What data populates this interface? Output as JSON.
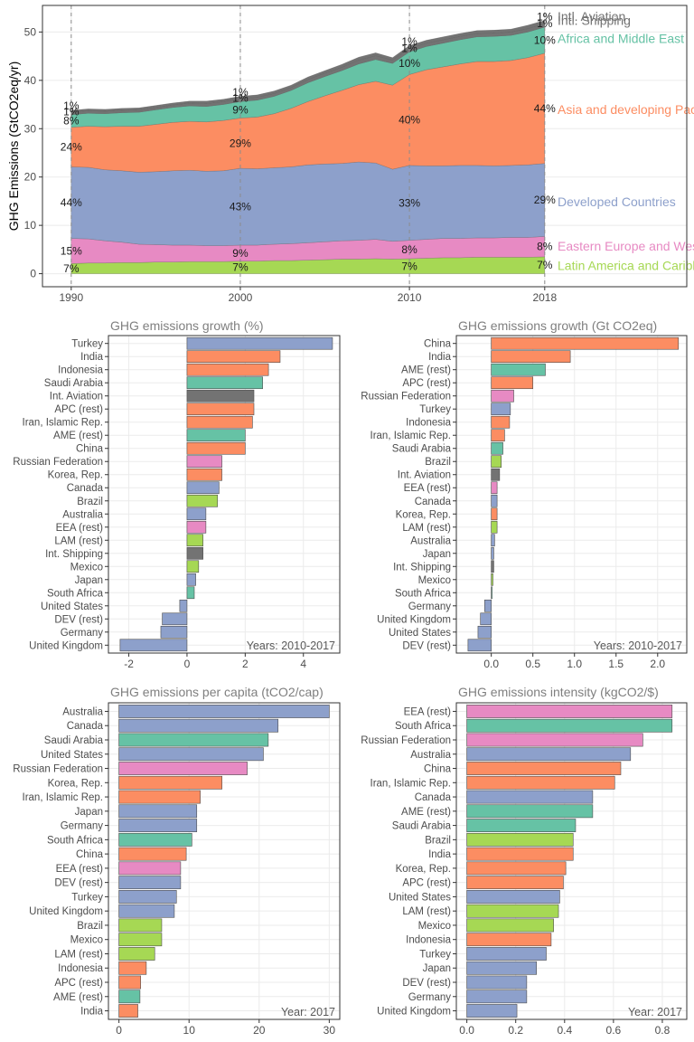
{
  "colors": {
    "Developed Countries": "#8DA0CB",
    "Asia and developing Pacific": "#FC8D62",
    "Africa and Middle East": "#66C2A5",
    "Eastern Europe and West-Central Asia": "#E78AC3",
    "Latin America and Caribbean": "#A6D854",
    "Intl. Aviation": "#737373",
    "Intl. Shipping": "#737373"
  },
  "chart_data": [
    {
      "type": "area",
      "ylabel": "GHG Emissions (GtCO2eq/yr)",
      "xlabel": "",
      "xlim": [
        1988.3,
        2026.4
      ],
      "ylim": [
        -2.7,
        55.5
      ],
      "x_ticks": [
        1990,
        2000,
        2010,
        2018
      ],
      "y_ticks": [
        0,
        10,
        20,
        30,
        40,
        50
      ],
      "grid": true,
      "vlines": [
        1990,
        2000,
        2010,
        2018
      ],
      "x": [
        1990,
        1991,
        1992,
        1993,
        1994,
        1995,
        1996,
        1997,
        1998,
        1999,
        2000,
        2001,
        2002,
        2003,
        2004,
        2005,
        2006,
        2007,
        2008,
        2009,
        2010,
        2011,
        2012,
        2013,
        2014,
        2015,
        2016,
        2017,
        2018
      ],
      "series": [
        {
          "name": "Latin America and Caribbean",
          "values": [
            2.1,
            2.2,
            2.2,
            2.3,
            2.3,
            2.4,
            2.4,
            2.5,
            2.5,
            2.5,
            2.6,
            2.6,
            2.7,
            2.7,
            2.8,
            2.9,
            3.0,
            3.0,
            3.1,
            3.0,
            3.1,
            3.2,
            3.3,
            3.3,
            3.4,
            3.4,
            3.4,
            3.4,
            3.5
          ]
        },
        {
          "name": "Eastern Europe and West-Central Asia",
          "values": [
            5.2,
            5.0,
            4.6,
            4.2,
            3.8,
            3.6,
            3.5,
            3.4,
            3.3,
            3.3,
            3.3,
            3.3,
            3.4,
            3.5,
            3.6,
            3.7,
            3.8,
            3.9,
            4.0,
            3.7,
            3.8,
            3.9,
            4.0,
            4.0,
            4.0,
            4.0,
            4.1,
            4.1,
            4.2
          ]
        },
        {
          "name": "Developed Countries",
          "values": [
            14.8,
            14.8,
            14.7,
            14.8,
            14.9,
            15.1,
            15.4,
            15.5,
            15.4,
            15.5,
            15.9,
            15.8,
            15.8,
            15.9,
            16.1,
            16.1,
            16.0,
            16.2,
            15.8,
            14.9,
            15.5,
            15.2,
            15.0,
            15.1,
            15.0,
            14.9,
            14.9,
            15.0,
            15.1
          ]
        },
        {
          "name": "Asia and developing Pacific",
          "values": [
            8.2,
            8.5,
            8.9,
            9.2,
            9.5,
            9.8,
            10.0,
            10.1,
            10.2,
            10.4,
            10.4,
            10.7,
            11.2,
            12.1,
            13.1,
            14.1,
            15.1,
            16.0,
            16.9,
            17.4,
            18.8,
            19.9,
            20.5,
            21.0,
            21.5,
            21.6,
            21.7,
            22.2,
            22.8
          ]
        },
        {
          "name": "Africa and Middle East",
          "values": [
            2.6,
            2.7,
            2.7,
            2.8,
            2.9,
            3.0,
            3.1,
            3.2,
            3.2,
            3.3,
            3.4,
            3.5,
            3.6,
            3.7,
            3.9,
            4.0,
            4.1,
            4.3,
            4.5,
            4.5,
            4.7,
            4.8,
            4.9,
            5.0,
            5.1,
            5.2,
            5.2,
            5.3,
            5.4
          ]
        },
        {
          "name": "Intl. Shipping",
          "values": [
            0.5,
            0.5,
            0.5,
            0.5,
            0.5,
            0.5,
            0.5,
            0.6,
            0.6,
            0.6,
            0.6,
            0.6,
            0.6,
            0.6,
            0.7,
            0.7,
            0.7,
            0.8,
            0.8,
            0.7,
            0.7,
            0.7,
            0.7,
            0.7,
            0.7,
            0.7,
            0.7,
            0.7,
            0.7
          ]
        },
        {
          "name": "Intl. Aviation",
          "values": [
            0.4,
            0.4,
            0.4,
            0.4,
            0.4,
            0.4,
            0.4,
            0.4,
            0.5,
            0.5,
            0.5,
            0.5,
            0.5,
            0.5,
            0.5,
            0.5,
            0.6,
            0.6,
            0.6,
            0.5,
            0.6,
            0.6,
            0.6,
            0.6,
            0.6,
            0.6,
            0.6,
            0.7,
            0.7
          ]
        }
      ],
      "pct_labels": [
        {
          "year": 1990,
          "values": [
            "7%",
            "15%",
            "44%",
            "24%",
            "8%",
            "1%",
            "1%"
          ]
        },
        {
          "year": 2000,
          "values": [
            "7%",
            "9%",
            "43%",
            "29%",
            "9%",
            "1%",
            "1%"
          ]
        },
        {
          "year": 2010,
          "values": [
            "7%",
            "8%",
            "33%",
            "40%",
            "10%",
            "1%",
            "1%"
          ]
        },
        {
          "year": 2018,
          "values": [
            "7%",
            "8%",
            "29%",
            "44%",
            "10%",
            "1%",
            "1%"
          ]
        }
      ],
      "end_labels": [
        {
          "series": "Intl. Aviation",
          "text": "Intl. Aviation",
          "y": 53.3
        },
        {
          "series": "Intl. Shipping",
          "text": "Intl. Shipping",
          "y": 52.4
        },
        {
          "series": "Africa and Middle East",
          "text": "Africa and Middle East",
          "y": 48.7
        },
        {
          "series": "Asia and developing Pacific",
          "text": "Asia and developing Pacific",
          "y": 34.0
        },
        {
          "series": "Developed Countries",
          "text": "Developed Countries",
          "y": 14.9
        },
        {
          "series": "Eastern Europe and West-Central Asia",
          "text": "Eastern Europe and West-Central Asia",
          "y": 5.7
        },
        {
          "series": "Latin America and Caribbean",
          "text": "Latin America and Caribbean",
          "y": 1.7
        }
      ]
    },
    {
      "type": "bar",
      "title": "GHG emissions growth (%)",
      "annotation": "Years: 2010-2017",
      "xlim": [
        -2.7,
        5.25
      ],
      "x_ticks": [
        -2,
        0,
        2,
        4
      ],
      "bars": [
        {
          "label": "Turkey",
          "value": 5.0,
          "group": "Developed Countries"
        },
        {
          "label": "India",
          "value": 3.2,
          "group": "Asia and developing Pacific"
        },
        {
          "label": "Indonesia",
          "value": 2.8,
          "group": "Asia and developing Pacific"
        },
        {
          "label": "Saudi Arabia",
          "value": 2.6,
          "group": "Africa and Middle East"
        },
        {
          "label": "Int. Aviation",
          "value": 2.3,
          "group": "Intl. Aviation"
        },
        {
          "label": "APC (rest)",
          "value": 2.3,
          "group": "Asia and developing Pacific"
        },
        {
          "label": "Iran, Islamic Rep.",
          "value": 2.25,
          "group": "Asia and developing Pacific"
        },
        {
          "label": "AME (rest)",
          "value": 2.0,
          "group": "Africa and Middle East"
        },
        {
          "label": "China",
          "value": 2.0,
          "group": "Asia and developing Pacific"
        },
        {
          "label": "Russian Federation",
          "value": 1.2,
          "group": "Eastern Europe and West-Central Asia"
        },
        {
          "label": "Korea, Rep.",
          "value": 1.2,
          "group": "Asia and developing Pacific"
        },
        {
          "label": "Canada",
          "value": 1.1,
          "group": "Developed Countries"
        },
        {
          "label": "Brazil",
          "value": 1.05,
          "group": "Latin America and Caribbean"
        },
        {
          "label": "Australia",
          "value": 0.65,
          "group": "Developed Countries"
        },
        {
          "label": "EEA (rest)",
          "value": 0.65,
          "group": "Eastern Europe and West-Central Asia"
        },
        {
          "label": "LAM (rest)",
          "value": 0.55,
          "group": "Latin America and Caribbean"
        },
        {
          "label": "Int. Shipping",
          "value": 0.55,
          "group": "Intl. Shipping"
        },
        {
          "label": "Mexico",
          "value": 0.4,
          "group": "Latin America and Caribbean"
        },
        {
          "label": "Japan",
          "value": 0.3,
          "group": "Developed Countries"
        },
        {
          "label": "South Africa",
          "value": 0.25,
          "group": "Africa and Middle East"
        },
        {
          "label": "United States",
          "value": -0.25,
          "group": "Developed Countries"
        },
        {
          "label": "DEV (rest)",
          "value": -0.85,
          "group": "Developed Countries"
        },
        {
          "label": "Germany",
          "value": -0.9,
          "group": "Developed Countries"
        },
        {
          "label": "United Kingdom",
          "value": -2.3,
          "group": "Developed Countries"
        }
      ]
    },
    {
      "type": "bar",
      "title": "GHG emissions growth (Gt CO2eq)",
      "annotation": "Years: 2010-2017",
      "xlim": [
        -0.42,
        2.35
      ],
      "x_ticks": [
        0.0,
        0.5,
        1.0,
        1.5,
        2.0
      ],
      "bars": [
        {
          "label": "China",
          "value": 2.25,
          "group": "Asia and developing Pacific"
        },
        {
          "label": "India",
          "value": 0.95,
          "group": "Asia and developing Pacific"
        },
        {
          "label": "AME (rest)",
          "value": 0.65,
          "group": "Africa and Middle East"
        },
        {
          "label": "APC (rest)",
          "value": 0.5,
          "group": "Asia and developing Pacific"
        },
        {
          "label": "Russian Federation",
          "value": 0.27,
          "group": "Eastern Europe and West-Central Asia"
        },
        {
          "label": "Turkey",
          "value": 0.23,
          "group": "Developed Countries"
        },
        {
          "label": "Indonesia",
          "value": 0.22,
          "group": "Asia and developing Pacific"
        },
        {
          "label": "Iran, Islamic Rep.",
          "value": 0.16,
          "group": "Asia and developing Pacific"
        },
        {
          "label": "Saudi Arabia",
          "value": 0.14,
          "group": "Africa and Middle East"
        },
        {
          "label": "Brazil",
          "value": 0.12,
          "group": "Latin America and Caribbean"
        },
        {
          "label": "Int. Aviation",
          "value": 0.1,
          "group": "Intl. Aviation"
        },
        {
          "label": "EEA (rest)",
          "value": 0.07,
          "group": "Eastern Europe and West-Central Asia"
        },
        {
          "label": "Canada",
          "value": 0.07,
          "group": "Developed Countries"
        },
        {
          "label": "Korea, Rep.",
          "value": 0.07,
          "group": "Asia and developing Pacific"
        },
        {
          "label": "LAM (rest)",
          "value": 0.07,
          "group": "Latin America and Caribbean"
        },
        {
          "label": "Australia",
          "value": 0.04,
          "group": "Developed Countries"
        },
        {
          "label": "Japan",
          "value": 0.03,
          "group": "Developed Countries"
        },
        {
          "label": "Int. Shipping",
          "value": 0.03,
          "group": "Intl. Shipping"
        },
        {
          "label": "Mexico",
          "value": 0.02,
          "group": "Latin America and Caribbean"
        },
        {
          "label": "South Africa",
          "value": 0.01,
          "group": "Africa and Middle East"
        },
        {
          "label": "Germany",
          "value": -0.08,
          "group": "Developed Countries"
        },
        {
          "label": "United Kingdom",
          "value": -0.13,
          "group": "Developed Countries"
        },
        {
          "label": "United States",
          "value": -0.16,
          "group": "Developed Countries"
        },
        {
          "label": "DEV (rest)",
          "value": -0.28,
          "group": "Developed Countries"
        }
      ]
    },
    {
      "type": "bar",
      "title": "GHG emissions per capita (tCO2/cap)",
      "annotation": "Year: 2017",
      "xlim": [
        -1.5,
        31.5
      ],
      "x_ticks": [
        0,
        10,
        20,
        30
      ],
      "bars": [
        {
          "label": "Australia",
          "value": 30.0,
          "group": "Developed Countries"
        },
        {
          "label": "Canada",
          "value": 22.7,
          "group": "Developed Countries"
        },
        {
          "label": "Saudi Arabia",
          "value": 21.3,
          "group": "Africa and Middle East"
        },
        {
          "label": "United States",
          "value": 20.6,
          "group": "Developed Countries"
        },
        {
          "label": "Russian Federation",
          "value": 18.3,
          "group": "Eastern Europe and West-Central Asia"
        },
        {
          "label": "Korea, Rep.",
          "value": 14.7,
          "group": "Asia and developing Pacific"
        },
        {
          "label": "Iran, Islamic Rep.",
          "value": 11.6,
          "group": "Asia and developing Pacific"
        },
        {
          "label": "Japan",
          "value": 11.1,
          "group": "Developed Countries"
        },
        {
          "label": "Germany",
          "value": 11.1,
          "group": "Developed Countries"
        },
        {
          "label": "South Africa",
          "value": 10.4,
          "group": "Africa and Middle East"
        },
        {
          "label": "China",
          "value": 9.6,
          "group": "Asia and developing Pacific"
        },
        {
          "label": "EEA (rest)",
          "value": 8.8,
          "group": "Eastern Europe and West-Central Asia"
        },
        {
          "label": "DEV (rest)",
          "value": 8.8,
          "group": "Developed Countries"
        },
        {
          "label": "Turkey",
          "value": 8.2,
          "group": "Developed Countries"
        },
        {
          "label": "United Kingdom",
          "value": 7.9,
          "group": "Developed Countries"
        },
        {
          "label": "Brazil",
          "value": 6.1,
          "group": "Latin America and Caribbean"
        },
        {
          "label": "Mexico",
          "value": 6.1,
          "group": "Latin America and Caribbean"
        },
        {
          "label": "LAM (rest)",
          "value": 5.1,
          "group": "Latin America and Caribbean"
        },
        {
          "label": "Indonesia",
          "value": 3.9,
          "group": "Asia and developing Pacific"
        },
        {
          "label": "APC (rest)",
          "value": 3.1,
          "group": "Asia and developing Pacific"
        },
        {
          "label": "AME (rest)",
          "value": 3.0,
          "group": "Africa and Middle East"
        },
        {
          "label": "India",
          "value": 2.7,
          "group": "Asia and developing Pacific"
        }
      ]
    },
    {
      "type": "bar",
      "title": "GHG emissions intensity (kgCO2/$)",
      "annotation": "Year: 2017",
      "xlim": [
        -0.043,
        0.9
      ],
      "x_ticks": [
        0.0,
        0.2,
        0.4,
        0.6,
        0.8
      ],
      "bars": [
        {
          "label": "EEA (rest)",
          "value": 0.84,
          "group": "Eastern Europe and West-Central Asia"
        },
        {
          "label": "South Africa",
          "value": 0.84,
          "group": "Africa and Middle East"
        },
        {
          "label": "Russian Federation",
          "value": 0.72,
          "group": "Eastern Europe and West-Central Asia"
        },
        {
          "label": "Australia",
          "value": 0.67,
          "group": "Developed Countries"
        },
        {
          "label": "China",
          "value": 0.63,
          "group": "Asia and developing Pacific"
        },
        {
          "label": "Iran, Islamic Rep.",
          "value": 0.605,
          "group": "Asia and developing Pacific"
        },
        {
          "label": "Canada",
          "value": 0.515,
          "group": "Developed Countries"
        },
        {
          "label": "AME (rest)",
          "value": 0.515,
          "group": "Africa and Middle East"
        },
        {
          "label": "Saudi Arabia",
          "value": 0.445,
          "group": "Africa and Middle East"
        },
        {
          "label": "Brazil",
          "value": 0.435,
          "group": "Latin America and Caribbean"
        },
        {
          "label": "India",
          "value": 0.435,
          "group": "Asia and developing Pacific"
        },
        {
          "label": "Korea, Rep.",
          "value": 0.405,
          "group": "Asia and developing Pacific"
        },
        {
          "label": "APC (rest)",
          "value": 0.395,
          "group": "Asia and developing Pacific"
        },
        {
          "label": "United States",
          "value": 0.38,
          "group": "Developed Countries"
        },
        {
          "label": "LAM (rest)",
          "value": 0.375,
          "group": "Latin America and Caribbean"
        },
        {
          "label": "Mexico",
          "value": 0.355,
          "group": "Latin America and Caribbean"
        },
        {
          "label": "Indonesia",
          "value": 0.345,
          "group": "Asia and developing Pacific"
        },
        {
          "label": "Turkey",
          "value": 0.325,
          "group": "Developed Countries"
        },
        {
          "label": "Japan",
          "value": 0.285,
          "group": "Developed Countries"
        },
        {
          "label": "DEV (rest)",
          "value": 0.245,
          "group": "Developed Countries"
        },
        {
          "label": "Germany",
          "value": 0.245,
          "group": "Developed Countries"
        },
        {
          "label": "United Kingdom",
          "value": 0.205,
          "group": "Developed Countries"
        }
      ]
    }
  ]
}
